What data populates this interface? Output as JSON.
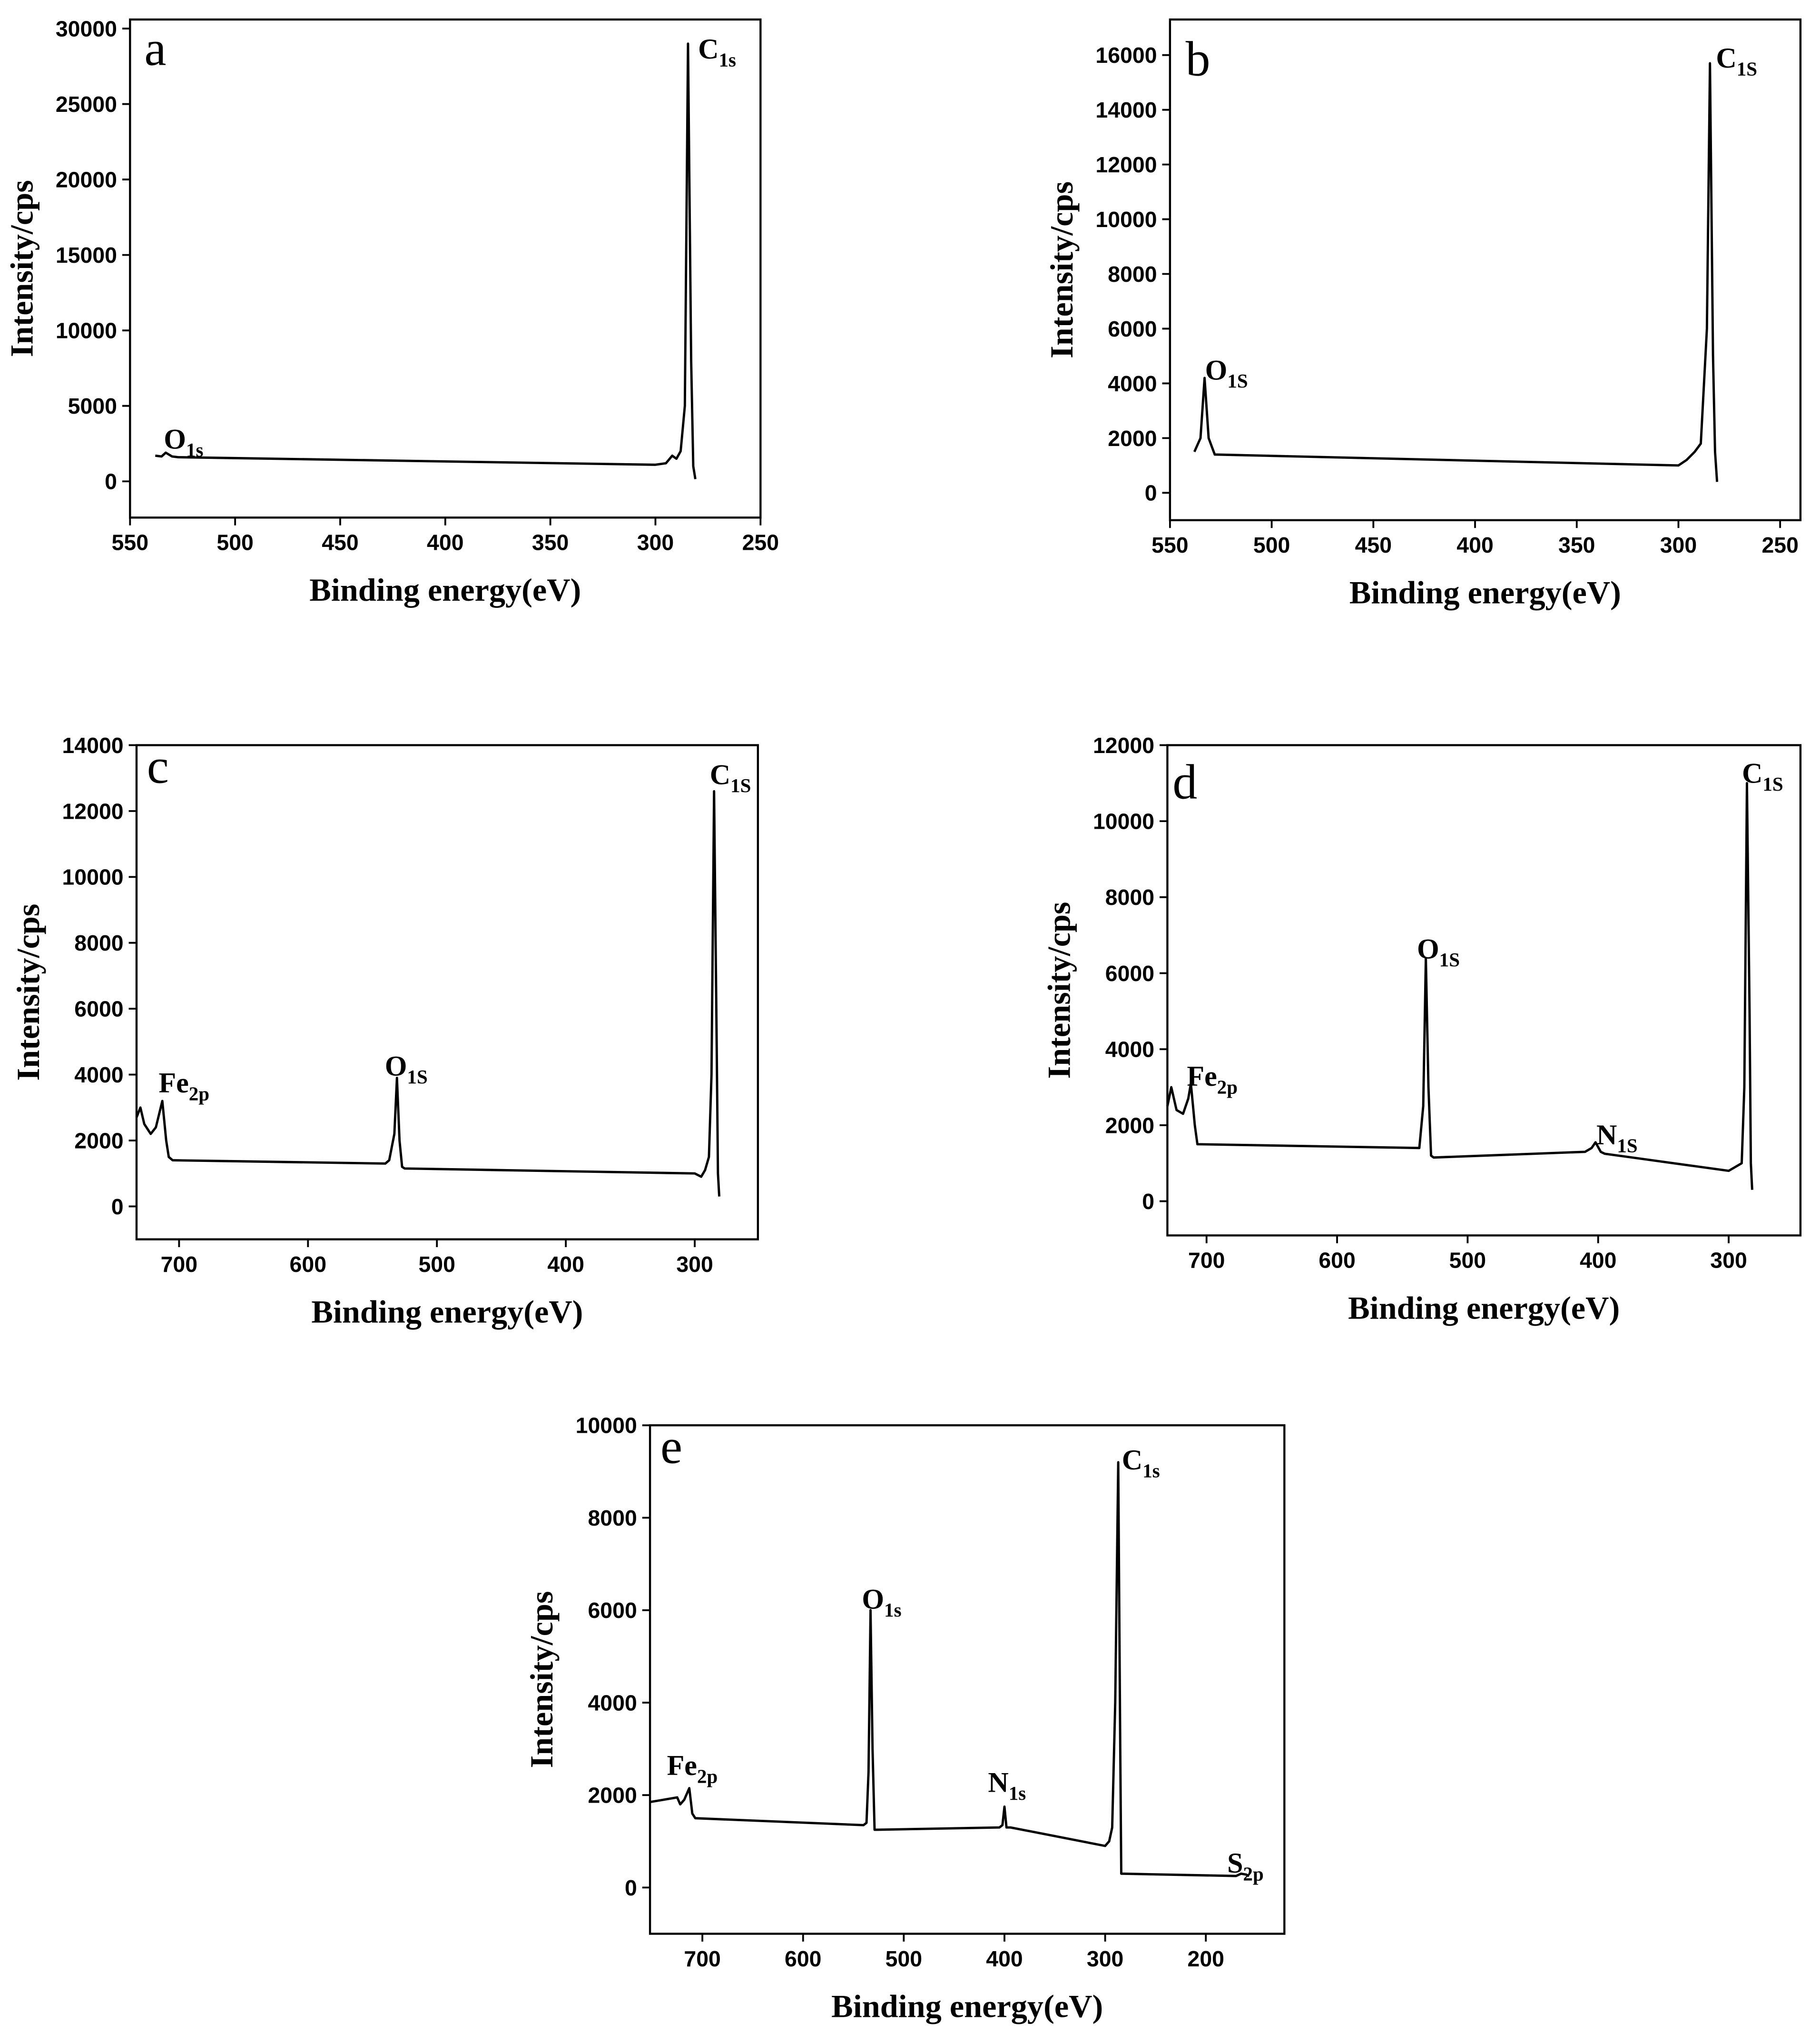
{
  "chart_data": [
    {
      "type": "line",
      "panel": "a",
      "xlabel": "Binding energy(eV)",
      "ylabel": "Intensity/cps",
      "color": "#000000",
      "xlim": [
        550,
        250
      ],
      "xticks": [
        550,
        500,
        450,
        400,
        350,
        300,
        250
      ],
      "ylim": [
        -2400,
        30600
      ],
      "yticks": [
        0,
        5000,
        10000,
        15000,
        20000,
        25000,
        30000
      ],
      "x": [
        538,
        535,
        533,
        530,
        527,
        300,
        295,
        292,
        290,
        288,
        286,
        284.5,
        283,
        282,
        281
      ],
      "values": [
        1700,
        1650,
        1900,
        1650,
        1600,
        1100,
        1200,
        1700,
        1500,
        2000,
        5000,
        29000,
        8000,
        1000,
        150
      ],
      "annotations": [
        {
          "text": "O",
          "sub": "1s"
        },
        {
          "text": "C",
          "sub": "1s"
        }
      ]
    },
    {
      "type": "line",
      "panel": "b",
      "xlabel": "Binding energy(eV)",
      "ylabel": "Intensity/cps",
      "color": "#000000",
      "xlim": [
        550,
        240
      ],
      "xticks": [
        550,
        500,
        450,
        400,
        350,
        300,
        250
      ],
      "ylim": [
        -1000,
        17300
      ],
      "yticks": [
        0,
        2000,
        4000,
        6000,
        8000,
        10000,
        12000,
        14000,
        16000
      ],
      "x": [
        538,
        535,
        533,
        531,
        528,
        300,
        296,
        292,
        289,
        286,
        284.5,
        283,
        282,
        281
      ],
      "values": [
        1500,
        2000,
        4200,
        2000,
        1400,
        1000,
        1200,
        1500,
        1800,
        6000,
        15700,
        5000,
        1500,
        400
      ],
      "annotations": [
        {
          "text": "O",
          "sub": "1S"
        },
        {
          "text": "C",
          "sub": "1S"
        }
      ]
    },
    {
      "type": "line",
      "panel": "c",
      "xlabel": "Binding energy(eV)",
      "ylabel": "Intensity/cps",
      "color": "#000000",
      "xlim": [
        733,
        251
      ],
      "xticks": [
        700,
        600,
        500,
        400,
        300
      ],
      "ylim": [
        -1000,
        14000
      ],
      "yticks": [
        0,
        2000,
        4000,
        6000,
        8000,
        10000,
        12000,
        14000
      ],
      "x": [
        733,
        730,
        727,
        722,
        718,
        713,
        710,
        708,
        705,
        540,
        537,
        533,
        531,
        529,
        527,
        525,
        300,
        295,
        292,
        289,
        287,
        285,
        283,
        282,
        281
      ],
      "values": [
        2700,
        3000,
        2500,
        2200,
        2400,
        3200,
        2000,
        1500,
        1400,
        1300,
        1400,
        2200,
        3900,
        2000,
        1200,
        1150,
        1000,
        900,
        1100,
        1500,
        4000,
        12600,
        5000,
        1000,
        300
      ],
      "annotations": [
        {
          "text": "Fe",
          "sub": "2p"
        },
        {
          "text": "O",
          "sub": "1S"
        },
        {
          "text": "C",
          "sub": "1S"
        }
      ]
    },
    {
      "type": "line",
      "panel": "d",
      "xlabel": "Binding energy(eV)",
      "ylabel": "Intensity/cps",
      "color": "#000000",
      "xlim": [
        730,
        245
      ],
      "xticks": [
        700,
        600,
        500,
        400,
        300
      ],
      "ylim": [
        -900,
        12000
      ],
      "yticks": [
        0,
        2000,
        4000,
        6000,
        8000,
        10000,
        12000
      ],
      "x": [
        730,
        727,
        723,
        718,
        714,
        712,
        709,
        707,
        537,
        534,
        532,
        530,
        528,
        526,
        410,
        405,
        402,
        398,
        395,
        300,
        295,
        290,
        288,
        286,
        284,
        283,
        282
      ],
      "values": [
        2500,
        3000,
        2400,
        2300,
        2700,
        3100,
        2000,
        1500,
        1400,
        2500,
        6400,
        3000,
        1200,
        1150,
        1300,
        1400,
        1550,
        1300,
        1250,
        800,
        900,
        1000,
        3000,
        11000,
        5000,
        1000,
        300
      ],
      "annotations": [
        {
          "text": "Fe",
          "sub": "2p"
        },
        {
          "text": "O",
          "sub": "1S"
        },
        {
          "text": "N",
          "sub": "1S"
        },
        {
          "text": "C",
          "sub": "1S"
        }
      ]
    },
    {
      "type": "line",
      "panel": "e",
      "xlabel": "Binding energy(eV)",
      "ylabel": "Intensity/cps",
      "color": "#000000",
      "xlim": [
        752,
        122
      ],
      "xticks": [
        700,
        600,
        500,
        400,
        300,
        200
      ],
      "ylim": [
        -1000,
        10000
      ],
      "yticks": [
        0,
        2000,
        4000,
        6000,
        8000,
        10000
      ],
      "x": [
        752,
        725,
        722,
        718,
        713,
        710,
        707,
        540,
        537,
        535,
        533,
        531,
        529,
        527,
        405,
        402,
        400,
        398,
        394,
        300,
        296,
        293,
        290,
        287,
        285,
        284,
        170,
        165,
        160,
        157
      ],
      "values": [
        1850,
        1950,
        1800,
        1900,
        2150,
        1600,
        1500,
        1350,
        1400,
        2500,
        6000,
        3000,
        1250,
        1250,
        1300,
        1350,
        1750,
        1300,
        1300,
        900,
        1000,
        1300,
        4000,
        9200,
        3000,
        300,
        250,
        300,
        280,
        250
      ],
      "annotations": [
        {
          "text": "Fe",
          "sub": "2p"
        },
        {
          "text": "O",
          "sub": "1s"
        },
        {
          "text": "N",
          "sub": "1s"
        },
        {
          "text": "C",
          "sub": "1s"
        },
        {
          "text": "S",
          "sub": "2p"
        }
      ]
    }
  ]
}
